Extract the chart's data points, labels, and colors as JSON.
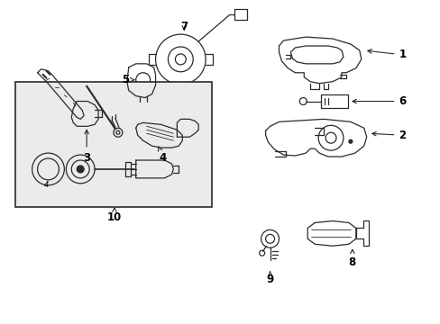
{
  "background_color": "#ffffff",
  "line_color": "#2a2a2a",
  "text_color": "#000000",
  "box_fill": "#ebebeb",
  "label_fontsize": 8.5,
  "figsize": [
    4.89,
    3.6
  ],
  "dpi": 100
}
